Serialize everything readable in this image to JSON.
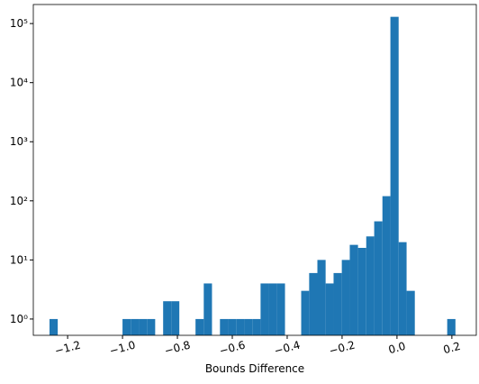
{
  "chart_data": {
    "type": "histogram",
    "xlabel": "Bounds Difference",
    "bins": [
      -1.266,
      -1.236,
      -1.207,
      -1.177,
      -1.148,
      -1.118,
      -1.089,
      -1.059,
      -1.029,
      -1.0,
      -0.97,
      -0.941,
      -0.911,
      -0.881,
      -0.852,
      -0.822,
      -0.793,
      -0.763,
      -0.734,
      -0.704,
      -0.674,
      -0.645,
      -0.615,
      -0.586,
      -0.556,
      -0.527,
      -0.497,
      -0.467,
      -0.438,
      -0.408,
      -0.379,
      -0.349,
      -0.32,
      -0.29,
      -0.26,
      -0.231,
      -0.201,
      -0.172,
      -0.142,
      -0.112,
      -0.083,
      -0.053,
      -0.024,
      0.006,
      0.035,
      0.065,
      0.094,
      0.124,
      0.154,
      0.183,
      0.213
    ],
    "values": [
      1,
      0,
      0,
      0,
      0,
      0,
      0,
      0,
      0,
      1,
      1,
      1,
      1,
      0,
      2,
      2,
      0,
      0,
      1,
      4,
      0,
      1,
      1,
      1,
      1,
      1,
      4,
      4,
      4,
      0,
      0,
      3,
      6,
      10,
      4,
      6,
      10,
      18,
      16,
      25,
      45,
      120,
      130000,
      20,
      3,
      0,
      0,
      0,
      0,
      1
    ],
    "color": "#1f77b4",
    "xlim": [
      -1.325,
      0.289
    ],
    "xticks": [
      {
        "value": -1.2,
        "label": "−1.2"
      },
      {
        "value": -1.0,
        "label": "−1.0"
      },
      {
        "value": -0.8,
        "label": "−0.8"
      },
      {
        "value": -0.6,
        "label": "−0.6"
      },
      {
        "value": -0.4,
        "label": "−0.4"
      },
      {
        "value": -0.2,
        "label": "−0.2"
      },
      {
        "value": 0,
        "label": "0.0"
      },
      0.2
    ],
    "ylim": [
      0.53,
      210000
    ],
    "log_y": true,
    "yticks": [
      {
        "value": 1,
        "label": "10⁰"
      },
      {
        "value": 10,
        "label": "10¹"
      },
      {
        "value": 100,
        "label": "10²"
      },
      {
        "value": 1000,
        "label": "10³"
      },
      {
        "value": 10000,
        "label": "10⁴"
      },
      {
        "value": 100000,
        "label": "10⁵"
      }
    ]
  }
}
